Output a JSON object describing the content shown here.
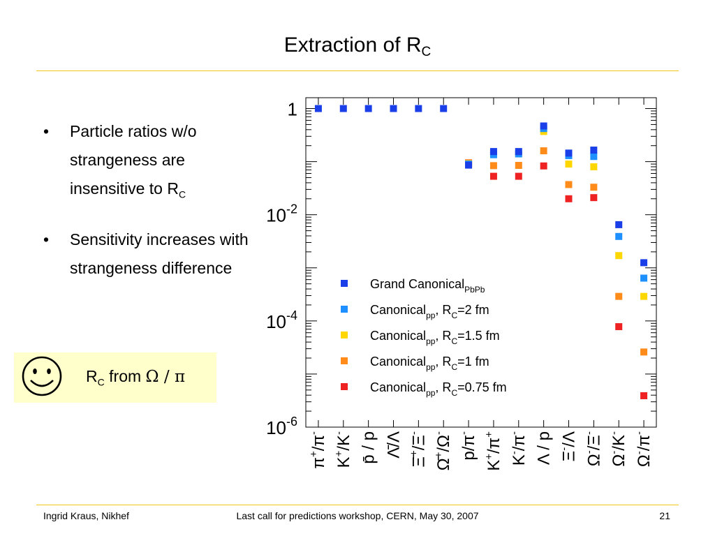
{
  "slide": {
    "title_main": "Extraction of R",
    "title_sub": "C"
  },
  "bullets": [
    {
      "text": "Particle ratios w/o strangeness are insensitive to R",
      "sub": "C"
    },
    {
      "text": "Sensitivity increases with strangeness difference",
      "sub": ""
    }
  ],
  "highlight_box": {
    "icon": "smiley-face-icon",
    "r_letter": "R",
    "r_sub": "C",
    "from_text": " from ",
    "ratio_text": "Ω / π",
    "background": "#ffffcc"
  },
  "footer": {
    "author": "Ingrid Kraus, Nikhef",
    "event": "Last call for predictions workshop, CERN, May 30, 2007",
    "page_number": "21"
  },
  "colors": {
    "rule": "#f2c518",
    "grand_canonical": "#1a3ee8",
    "rc_2fm": "#1e90ff",
    "rc_1_5fm": "#ffd700",
    "rc_1fm": "#ff8c1a",
    "rc_0_75fm": "#ee2222"
  },
  "chart_data": {
    "type": "scatter",
    "y_scale": "log",
    "ylim": [
      1e-06,
      1.6
    ],
    "y_ticks": [
      {
        "value": 1,
        "base": "1",
        "exp": ""
      },
      {
        "value": 0.01,
        "base": "10",
        "exp": "-2"
      },
      {
        "value": 0.0001,
        "base": "10",
        "exp": "-4"
      },
      {
        "value": 1e-06,
        "base": "10",
        "exp": "-6"
      }
    ],
    "categories": [
      {
        "main": "π",
        "sup": "+",
        "rest": "/π",
        "rest_sup": "-"
      },
      {
        "main": "K",
        "sup": "+",
        "rest": "/K",
        "rest_sup": "-"
      },
      {
        "main": "p̄",
        "sup": "",
        "rest": " / p",
        "rest_sup": ""
      },
      {
        "main": "Λ̄",
        "sup": "",
        "rest": "/Λ",
        "rest_sup": ""
      },
      {
        "main": "Ξ̄",
        "sup": "+",
        "rest": "/Ξ",
        "rest_sup": "-"
      },
      {
        "main": "Ω̄",
        "sup": "+",
        "rest": "/Ω",
        "rest_sup": "-"
      },
      {
        "main": "p",
        "sup": "",
        "rest": "/π",
        "rest_sup": "-"
      },
      {
        "main": "K",
        "sup": "+",
        "rest": "/π",
        "rest_sup": "+"
      },
      {
        "main": "K",
        "sup": "-",
        "rest": "/π",
        "rest_sup": "-"
      },
      {
        "main": "Λ",
        "sup": "",
        "rest": " / p",
        "rest_sup": ""
      },
      {
        "main": "Ξ",
        "sup": "-",
        "rest": "/Λ",
        "rest_sup": ""
      },
      {
        "main": "Ω",
        "sup": "-",
        "rest": "/Ξ",
        "rest_sup": "-"
      },
      {
        "main": "Ω",
        "sup": "-",
        "rest": "/K",
        "rest_sup": "-"
      },
      {
        "main": "Ω",
        "sup": "-",
        "rest": "/π",
        "rest_sup": "-"
      }
    ],
    "series": [
      {
        "name": "Grand Canonical",
        "name_sub": "PbPb",
        "rc_text": "",
        "color": "#1a3ee8",
        "values": [
          1.0,
          1.0,
          1.0,
          1.0,
          1.0,
          1.0,
          0.086,
          0.155,
          0.155,
          0.47,
          0.145,
          0.165,
          0.0065,
          0.00125
        ]
      },
      {
        "name": "Canonical",
        "name_sub": "pp",
        "rc_text": "=2 fm",
        "color": "#1e90ff",
        "values": [
          null,
          null,
          null,
          null,
          null,
          null,
          0.09,
          0.135,
          0.14,
          0.42,
          0.13,
          0.125,
          0.0039,
          0.00064
        ]
      },
      {
        "name": "Canonical",
        "name_sub": "pp",
        "rc_text": "=1.5 fm",
        "color": "#ffd700",
        "values": [
          null,
          null,
          null,
          null,
          null,
          null,
          0.092,
          0.14,
          0.14,
          0.37,
          0.09,
          0.08,
          0.0017,
          0.00029
        ]
      },
      {
        "name": "Canonical",
        "name_sub": "pp",
        "rc_text": "=1 fm",
        "color": "#ff8c1a",
        "values": [
          null,
          null,
          null,
          null,
          null,
          null,
          0.094,
          0.084,
          0.085,
          0.16,
          0.037,
          0.033,
          0.00029,
          2.6e-05
        ]
      },
      {
        "name": "Canonical",
        "name_sub": "pp",
        "rc_text": "=0.75 fm",
        "color": "#ee2222",
        "values": [
          null,
          null,
          null,
          null,
          null,
          null,
          0.095,
          0.053,
          0.053,
          0.083,
          0.02,
          0.021,
          7.8e-05,
          3.9e-06
        ]
      }
    ],
    "legend_rc_letter": "R",
    "legend_rc_sub": "C",
    "legend_sep": ", ",
    "legend_placement": "center",
    "grid": false
  }
}
